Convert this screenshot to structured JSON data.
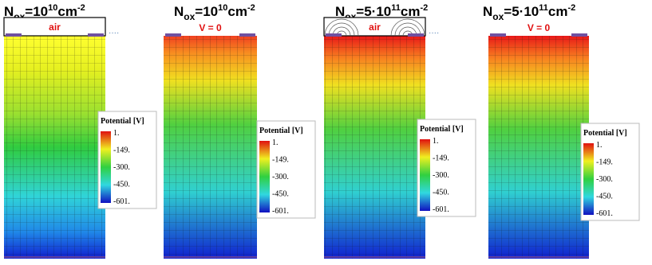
{
  "panels": [
    {
      "title": {
        "symbol": "N",
        "subscript": "ox",
        "prefix": "=10",
        "exponent": "10",
        "unit": "cm",
        "unit_exponent": "-2"
      },
      "label": "air",
      "legend": {
        "title": "Potential [V]",
        "ticks": [
          "1.",
          "-149.",
          "-300.",
          "-450.",
          "-601."
        ]
      }
    },
    {
      "title": {
        "symbol": "N",
        "subscript": "ox",
        "prefix": "=10",
        "exponent": "10",
        "unit": "cm",
        "unit_exponent": "-2"
      },
      "label": "V = 0",
      "legend": {
        "title": "Potential [V]",
        "ticks": [
          "1.",
          "-149.",
          "-300.",
          "-450.",
          "-601."
        ]
      }
    },
    {
      "title": {
        "symbol": "N",
        "subscript": "ox",
        "prefix": "=5·10",
        "exponent": "11",
        "unit": "cm",
        "unit_exponent": "-2"
      },
      "label": "air",
      "legend": {
        "title": "Potential [V]",
        "ticks": [
          "1.",
          "-149.",
          "-300.",
          "-450.",
          "-601."
        ]
      }
    },
    {
      "title": {
        "symbol": "N",
        "subscript": "ox",
        "prefix": "=5·10",
        "exponent": "11",
        "unit": "cm",
        "unit_exponent": "-2"
      },
      "label": "V = 0",
      "legend": {
        "title": "Potential [V]",
        "ticks": [
          "1.",
          "-149.",
          "-300.",
          "-450.",
          "-601."
        ]
      }
    }
  ]
}
